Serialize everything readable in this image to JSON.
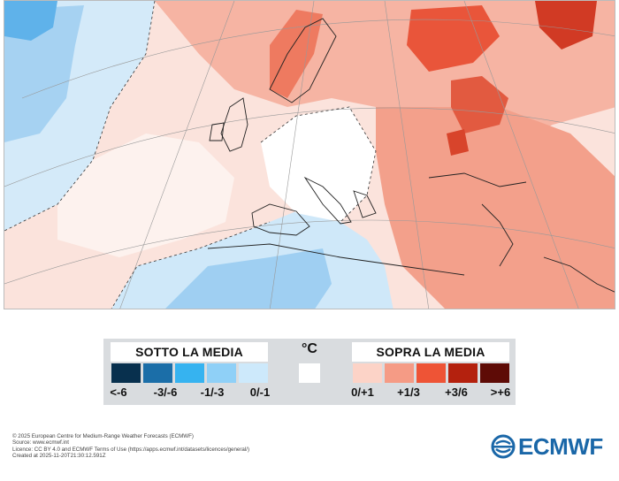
{
  "legend": {
    "below_title": "SOTTO LA MEDIA",
    "above_title": "SOPRA LA MEDIA",
    "unit": "°C",
    "below": [
      {
        "label": "<-6",
        "color": "#08304e"
      },
      {
        "label": "-3/-6",
        "color": "#1b6ea8"
      },
      {
        "label": "-1/-3",
        "color": "#36b3f0"
      },
      {
        "label": "",
        "color": "#8fd0f7"
      },
      {
        "label": "0/-1",
        "color": "#cde9fb"
      }
    ],
    "above": [
      {
        "label": "0/+1",
        "color": "#fcd3c7"
      },
      {
        "label": "+1/3",
        "color": "#f59b85"
      },
      {
        "label": "",
        "color": "#ee5436"
      },
      {
        "label": "+3/6",
        "color": "#b4210e"
      },
      {
        "label": ">+6",
        "color": "#5e0b06"
      }
    ]
  },
  "credits": [
    "© 2025 European Centre for Medium-Range Weather Forecasts (ECMWF)",
    "Source: www.ecmwf.int",
    "Licence: CC BY 4.0 and ECMWF Terms of Use (https://apps.ecmwf.int/datasets/licences/general/)",
    "Created at 2025-11-20T21:30:12.591Z"
  ],
  "logo": {
    "text": "ECMWF"
  },
  "colors": {
    "cold_light": "#dcecf8",
    "cold": "#a9d4f3",
    "warm_light": "#fbd2c6",
    "warm": "#f4a08b",
    "warm_strong": "#ea5a3f",
    "warm_dark": "#cf2f1c"
  }
}
